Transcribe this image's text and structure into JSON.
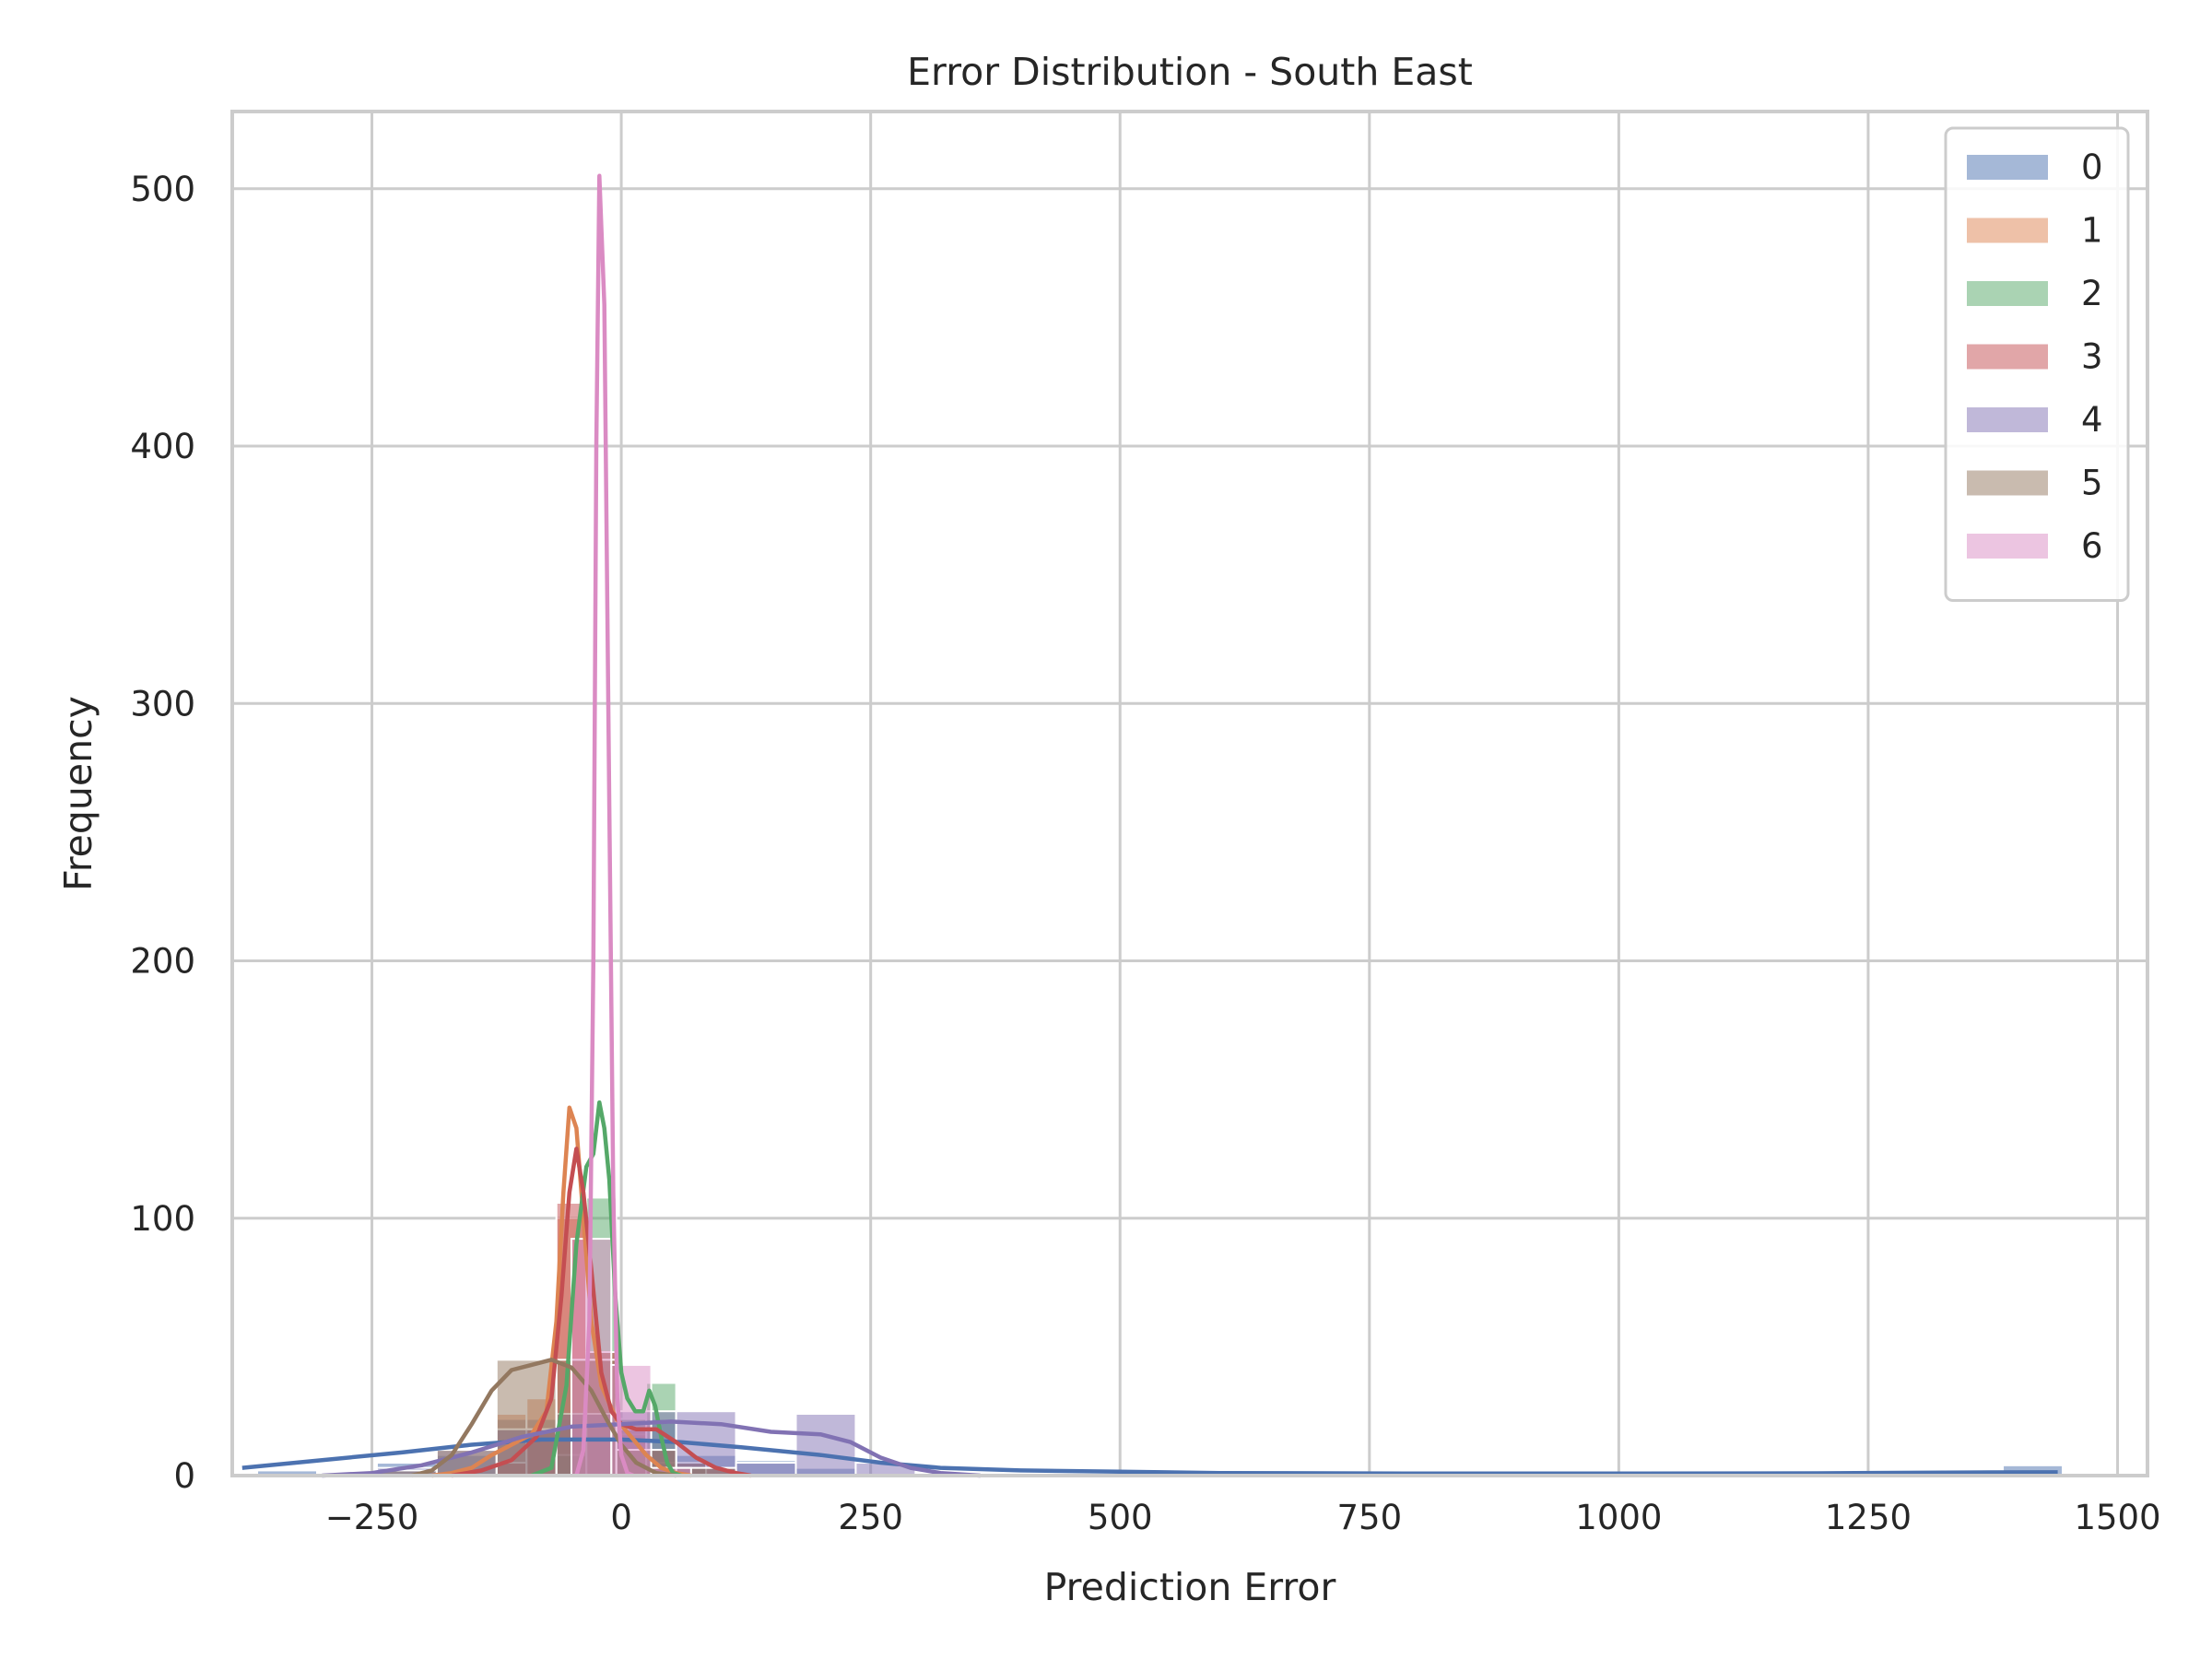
{
  "chart_data": {
    "type": "histogram",
    "title": "Error Distribution - South East",
    "xlabel": "Prediction Error",
    "ylabel": "Frequency",
    "xlim": [
      -390,
      1530
    ],
    "ylim": [
      0,
      530
    ],
    "xticks": [
      -250,
      0,
      250,
      500,
      750,
      1000,
      1250,
      1500
    ],
    "xtick_labels": [
      "−250",
      "0",
      "250",
      "500",
      "750",
      "1000",
      "1250",
      "1500"
    ],
    "yticks": [
      0,
      100,
      200,
      300,
      400,
      500
    ],
    "ytick_labels": [
      "0",
      "100",
      "200",
      "300",
      "400",
      "500"
    ],
    "grid": true,
    "legend_position": "top-right",
    "series": [
      {
        "name": "0",
        "color": "#4c72b0",
        "bins": [
          [
            -365,
            -305,
            2
          ],
          [
            -245,
            -185,
            5
          ],
          [
            -185,
            -125,
            8
          ],
          [
            -125,
            -65,
            22
          ],
          [
            -65,
            -5,
            22
          ],
          [
            -5,
            55,
            22
          ],
          [
            55,
            115,
            8
          ],
          [
            115,
            175,
            6
          ],
          [
            175,
            235,
            3
          ],
          [
            1385,
            1445,
            4
          ]
        ],
        "kde": [
          [
            -380,
            3
          ],
          [
            -300,
            6
          ],
          [
            -220,
            9
          ],
          [
            -150,
            12
          ],
          [
            -80,
            14
          ],
          [
            0,
            14
          ],
          [
            60,
            13
          ],
          [
            120,
            11
          ],
          [
            200,
            8
          ],
          [
            260,
            5
          ],
          [
            320,
            3
          ],
          [
            400,
            2
          ],
          [
            500,
            1.5
          ],
          [
            600,
            1
          ],
          [
            800,
            0.8
          ],
          [
            1000,
            0.8
          ],
          [
            1200,
            0.9
          ],
          [
            1350,
            1.2
          ],
          [
            1440,
            1.3
          ]
        ]
      },
      {
        "name": "1",
        "color": "#dd8452",
        "bins": [
          [
            -125,
            -95,
            24
          ],
          [
            -95,
            -65,
            30
          ],
          [
            -65,
            -35,
            100
          ],
          [
            -35,
            -5,
            48
          ],
          [
            -5,
            25,
            16
          ],
          [
            25,
            55,
            5
          ]
        ],
        "kde": [
          [
            -190,
            0
          ],
          [
            -170,
            1
          ],
          [
            -150,
            3
          ],
          [
            -130,
            8
          ],
          [
            -110,
            12
          ],
          [
            -90,
            16
          ],
          [
            -75,
            25
          ],
          [
            -65,
            60
          ],
          [
            -58,
            110
          ],
          [
            -52,
            143
          ],
          [
            -45,
            135
          ],
          [
            -38,
            100
          ],
          [
            -30,
            60
          ],
          [
            -20,
            35
          ],
          [
            -5,
            22
          ],
          [
            10,
            15
          ],
          [
            25,
            8
          ],
          [
            40,
            3
          ],
          [
            55,
            1
          ],
          [
            70,
            0
          ]
        ]
      },
      {
        "name": "2",
        "color": "#55a868",
        "bins": [
          [
            -65,
            -35,
            8
          ],
          [
            -35,
            -5,
            108
          ],
          [
            -5,
            25,
            22
          ],
          [
            25,
            55,
            36
          ],
          [
            55,
            85,
            5
          ]
        ],
        "kde": [
          [
            -90,
            0
          ],
          [
            -70,
            3
          ],
          [
            -55,
            35
          ],
          [
            -45,
            90
          ],
          [
            -35,
            120
          ],
          [
            -28,
            125
          ],
          [
            -22,
            145
          ],
          [
            -17,
            135
          ],
          [
            -12,
            115
          ],
          [
            -6,
            70
          ],
          [
            0,
            40
          ],
          [
            6,
            30
          ],
          [
            14,
            25
          ],
          [
            22,
            25
          ],
          [
            28,
            33
          ],
          [
            34,
            27
          ],
          [
            40,
            15
          ],
          [
            46,
            5
          ],
          [
            52,
            1
          ],
          [
            60,
            0
          ]
        ]
      },
      {
        "name": "3",
        "color": "#c44e52",
        "bins": [
          [
            -125,
            -95,
            5
          ],
          [
            -95,
            -65,
            18
          ],
          [
            -65,
            -35,
            106
          ],
          [
            -35,
            -5,
            48
          ],
          [
            -5,
            25,
            18
          ],
          [
            25,
            55,
            10
          ],
          [
            55,
            85,
            5
          ],
          [
            85,
            115,
            3
          ]
        ],
        "kde": [
          [
            -170,
            0
          ],
          [
            -140,
            2
          ],
          [
            -110,
            6
          ],
          [
            -85,
            15
          ],
          [
            -70,
            30
          ],
          [
            -60,
            70
          ],
          [
            -52,
            110
          ],
          [
            -45,
            127
          ],
          [
            -38,
            110
          ],
          [
            -30,
            80
          ],
          [
            -20,
            40
          ],
          [
            -10,
            25
          ],
          [
            0,
            20
          ],
          [
            15,
            18
          ],
          [
            35,
            18
          ],
          [
            55,
            13
          ],
          [
            75,
            7
          ],
          [
            95,
            3
          ],
          [
            115,
            1
          ],
          [
            130,
            0
          ]
        ]
      },
      {
        "name": "4",
        "color": "#8172b3",
        "bins": [
          [
            -245,
            -185,
            3
          ],
          [
            -185,
            -125,
            10
          ],
          [
            -125,
            -65,
            18
          ],
          [
            -65,
            -5,
            24
          ],
          [
            -5,
            55,
            25
          ],
          [
            55,
            115,
            25
          ],
          [
            115,
            175,
            5
          ],
          [
            175,
            235,
            24
          ],
          [
            235,
            295,
            5
          ]
        ],
        "kde": [
          [
            -300,
            0
          ],
          [
            -250,
            1
          ],
          [
            -200,
            4
          ],
          [
            -150,
            9
          ],
          [
            -100,
            15
          ],
          [
            -50,
            19
          ],
          [
            0,
            20
          ],
          [
            50,
            21
          ],
          [
            100,
            20
          ],
          [
            150,
            17
          ],
          [
            200,
            16
          ],
          [
            230,
            13
          ],
          [
            260,
            7
          ],
          [
            290,
            3
          ],
          [
            320,
            1
          ],
          [
            360,
            0
          ]
        ]
      },
      {
        "name": "5",
        "color": "#937860",
        "bins": [
          [
            -245,
            -185,
            2
          ],
          [
            -185,
            -125,
            10
          ],
          [
            -125,
            -65,
            45
          ],
          [
            -65,
            -5,
            45
          ],
          [
            -5,
            55,
            10
          ],
          [
            55,
            115,
            3
          ]
        ],
        "kde": [
          [
            -210,
            0
          ],
          [
            -190,
            2
          ],
          [
            -170,
            8
          ],
          [
            -150,
            20
          ],
          [
            -130,
            33
          ],
          [
            -110,
            41
          ],
          [
            -90,
            43
          ],
          [
            -70,
            45
          ],
          [
            -50,
            42
          ],
          [
            -30,
            33
          ],
          [
            -15,
            22
          ],
          [
            0,
            12
          ],
          [
            15,
            5
          ],
          [
            35,
            1
          ],
          [
            55,
            0
          ]
        ]
      },
      {
        "name": "6",
        "color": "#da8bc3",
        "bins": [
          [
            -50,
            -10,
            92
          ],
          [
            -10,
            30,
            43
          ],
          [
            30,
            70,
            3
          ]
        ],
        "kde": [
          [
            -45,
            0
          ],
          [
            -38,
            10
          ],
          [
            -32,
            60
          ],
          [
            -28,
            200
          ],
          [
            -25,
            400
          ],
          [
            -22,
            505
          ],
          [
            -17,
            455
          ],
          [
            -12,
            260
          ],
          [
            -8,
            110
          ],
          [
            -4,
            30
          ],
          [
            0,
            8
          ],
          [
            6,
            1
          ],
          [
            12,
            0
          ]
        ]
      }
    ]
  }
}
